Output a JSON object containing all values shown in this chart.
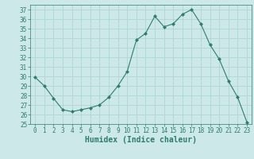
{
  "x": [
    0,
    1,
    2,
    3,
    4,
    5,
    6,
    7,
    8,
    9,
    10,
    11,
    12,
    13,
    14,
    15,
    16,
    17,
    18,
    19,
    20,
    21,
    22,
    23
  ],
  "y": [
    29.9,
    29.0,
    27.7,
    26.5,
    26.3,
    26.5,
    26.7,
    27.0,
    27.8,
    29.0,
    30.5,
    33.8,
    34.5,
    36.3,
    35.2,
    35.5,
    36.5,
    37.0,
    35.5,
    33.3,
    31.8,
    29.5,
    27.8,
    25.2
  ],
  "line_color": "#2e7d6e",
  "marker": "D",
  "marker_size": 2.0,
  "bg_color": "#cce8e8",
  "grid_color": "#aad0d0",
  "axis_color": "#2e7d6e",
  "text_color": "#2e7d6e",
  "xlabel": "Humidex (Indice chaleur)",
  "xlim": [
    -0.5,
    23.5
  ],
  "ylim": [
    25,
    37.5
  ],
  "yticks": [
    25,
    26,
    27,
    28,
    29,
    30,
    31,
    32,
    33,
    34,
    35,
    36,
    37
  ],
  "xticks": [
    0,
    1,
    2,
    3,
    4,
    5,
    6,
    7,
    8,
    9,
    10,
    11,
    12,
    13,
    14,
    15,
    16,
    17,
    18,
    19,
    20,
    21,
    22,
    23
  ],
  "tick_fontsize": 5.5,
  "label_fontsize": 7.0
}
